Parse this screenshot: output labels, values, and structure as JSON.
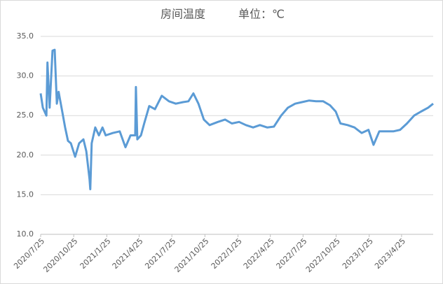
{
  "chart_data": {
    "type": "line",
    "title": "房间温度",
    "subtitle": "单位：℃",
    "x": [
      "2020/7/25",
      "2020/7/31",
      "2020/8/10",
      "2020/8/13",
      "2020/8/19",
      "2020/8/27",
      "2020/9/2",
      "2020/9/8",
      "2020/9/13",
      "2020/9/23",
      "2020/10/1",
      "2020/10/9",
      "2020/10/17",
      "2020/10/29",
      "2020/11/9",
      "2020/11/21",
      "2020/11/29",
      "2020/12/8",
      "2020/12/10",
      "2020/12/14",
      "2020/12/24",
      "2021/1/3",
      "2021/1/13",
      "2021/1/22",
      "2021/2/11",
      "2021/3/2",
      "2021/3/18",
      "2021/4/1",
      "2021/4/14",
      "2021/4/16",
      "2021/4/20",
      "2021/4/30",
      "2021/5/9",
      "2021/5/23",
      "2021/6/8",
      "2021/6/27",
      "2021/7/17",
      "2021/8/5",
      "2021/8/25",
      "2021/9/9",
      "2021/9/23",
      "2021/10/7",
      "2021/10/22",
      "2021/11/7",
      "2021/11/30",
      "2021/12/20",
      "2022/1/8",
      "2022/1/28",
      "2022/2/16",
      "2022/3/8",
      "2022/3/27",
      "2022/4/16",
      "2022/5/5",
      "2022/5/25",
      "2022/6/13",
      "2022/7/3",
      "2022/7/22",
      "2022/8/11",
      "2022/8/30",
      "2022/9/19",
      "2022/10/8",
      "2022/10/24",
      "2022/11/6",
      "2022/11/26",
      "2022/12/15",
      "2023/1/4",
      "2023/1/23",
      "2023/2/6",
      "2023/2/22",
      "2023/3/13",
      "2023/4/2",
      "2023/4/21",
      "2023/5/10",
      "2023/5/30",
      "2023/6/18",
      "2023/7/8",
      "2023/7/22"
    ],
    "series": [
      {
        "color": "#5b9bd5",
        "values": [
          27.8,
          26,
          25,
          31.7,
          26,
          33.2,
          33.3,
          26.5,
          28,
          25.5,
          23.5,
          21.8,
          21.5,
          19.8,
          21.5,
          22,
          20.5,
          17,
          15.7,
          21.5,
          23.5,
          22.5,
          23.5,
          22.5,
          22.8,
          23,
          21,
          22.5,
          22.5,
          28.6,
          22,
          22.5,
          24,
          26.2,
          25.8,
          27.5,
          26.8,
          26.5,
          26.7,
          26.8,
          27.8,
          26.5,
          24.5,
          23.8,
          24.2,
          24.5,
          24,
          24.2,
          23.8,
          23.5,
          23.8,
          23.5,
          23.6,
          25,
          26,
          26.5,
          26.7,
          26.9,
          26.8,
          26.8,
          26.3,
          25.5,
          24,
          23.8,
          23.5,
          22.8,
          23.2,
          21.3,
          23,
          23,
          23,
          23.2,
          24,
          25,
          25.5,
          26,
          26.5
        ]
      }
    ],
    "xlim": [
      "2020/7/25",
      "2023/7/22"
    ],
    "xticks": [
      "2020/7/25",
      "2020/10/25",
      "2021/1/25",
      "2021/4/25",
      "2021/7/25",
      "2021/10/25",
      "2022/1/25",
      "2022/4/25",
      "2022/7/25",
      "2022/10/25",
      "2023/1/25",
      "2023/4/25"
    ],
    "ylim": [
      10,
      35
    ],
    "yticks": [
      {
        "value": 10,
        "label": "10.0"
      },
      {
        "value": 15,
        "label": "15.0"
      },
      {
        "value": 20,
        "label": "20.0"
      },
      {
        "value": 25,
        "label": "25.0"
      },
      {
        "value": 30,
        "label": "30.0"
      },
      {
        "value": 35,
        "label": "35.0"
      }
    ],
    "grid": true
  }
}
